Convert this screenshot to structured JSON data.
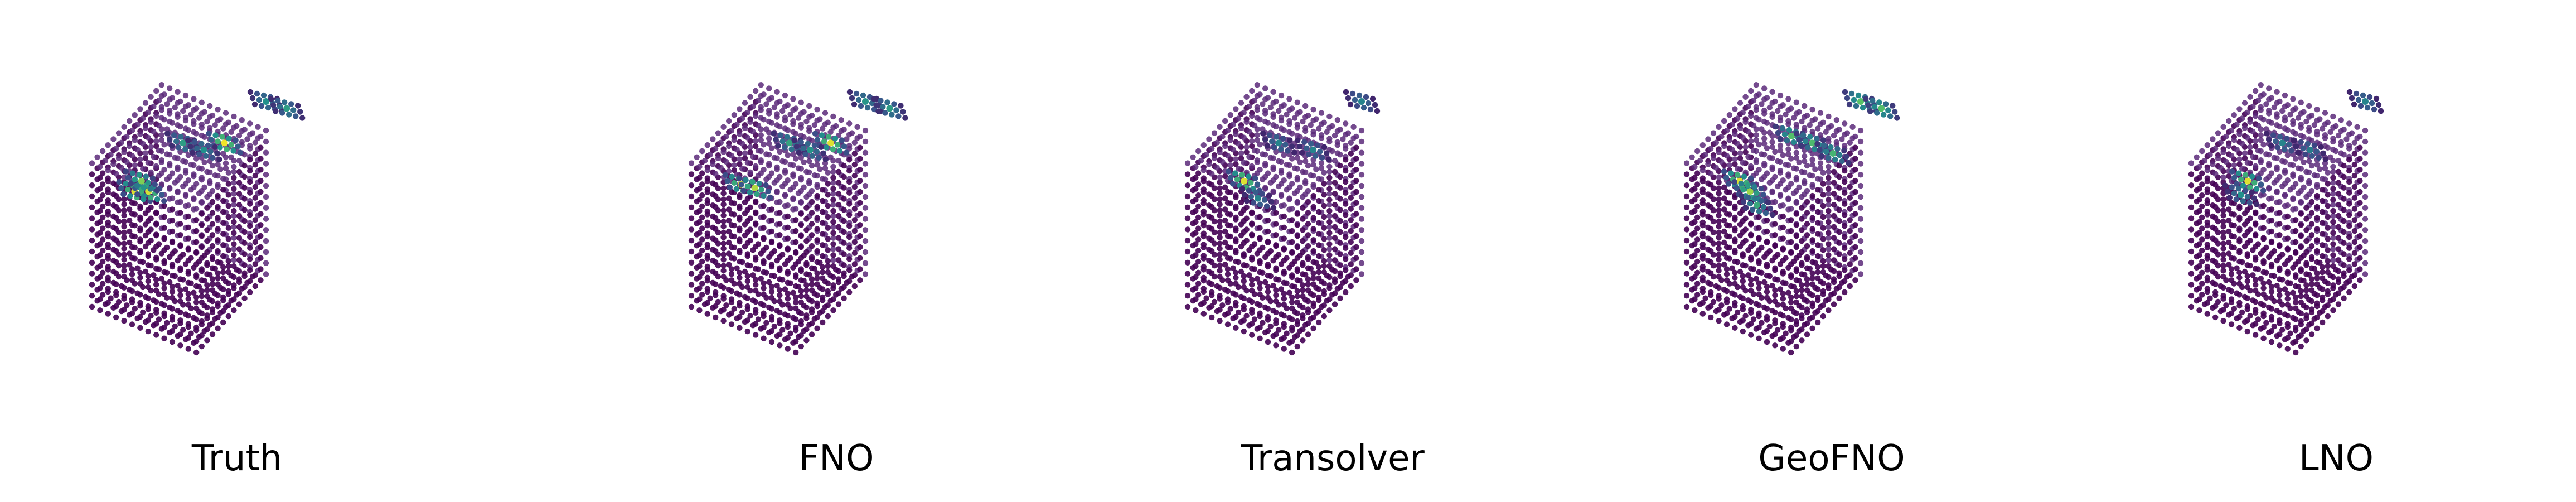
{
  "panels": [
    {
      "label": "Truth",
      "hotspots": [
        {
          "u": 0.22,
          "v": 0.36,
          "value": 0.95
        },
        {
          "u": 0.26,
          "v": 0.36,
          "value": 0.93
        },
        {
          "u": 0.24,
          "v": 0.33,
          "value": 0.8
        },
        {
          "u": 0.48,
          "v": 0.22,
          "value": 0.98
        },
        {
          "u": 0.36,
          "v": 0.22,
          "value": 0.55
        },
        {
          "u": 0.42,
          "v": 0.24,
          "value": 0.5
        },
        {
          "u": 0.6,
          "v": 0.1,
          "value": 0.5
        },
        {
          "u": 0.66,
          "v": 0.12,
          "value": 0.55
        }
      ]
    },
    {
      "label": "FNO",
      "hotspots": [
        {
          "u": 0.24,
          "v": 0.34,
          "value": 0.92
        },
        {
          "u": 0.28,
          "v": 0.35,
          "value": 0.88
        },
        {
          "u": 0.5,
          "v": 0.22,
          "value": 0.95
        },
        {
          "u": 0.38,
          "v": 0.22,
          "value": 0.58
        },
        {
          "u": 0.44,
          "v": 0.24,
          "value": 0.52
        },
        {
          "u": 0.6,
          "v": 0.1,
          "value": 0.52
        },
        {
          "u": 0.67,
          "v": 0.12,
          "value": 0.55
        }
      ]
    },
    {
      "label": "Transolver",
      "hotspots": [
        {
          "u": 0.26,
          "v": 0.33,
          "value": 0.95
        },
        {
          "u": 0.3,
          "v": 0.38,
          "value": 0.45
        },
        {
          "u": 0.36,
          "v": 0.22,
          "value": 0.45
        },
        {
          "u": 0.46,
          "v": 0.24,
          "value": 0.45
        },
        {
          "u": 0.6,
          "v": 0.1,
          "value": 0.45
        }
      ]
    },
    {
      "label": "GeoFNO",
      "hotspots": [
        {
          "u": 0.25,
          "v": 0.33,
          "value": 0.95
        },
        {
          "u": 0.28,
          "v": 0.36,
          "value": 0.85
        },
        {
          "u": 0.3,
          "v": 0.4,
          "value": 0.6
        },
        {
          "u": 0.4,
          "v": 0.2,
          "value": 0.7
        },
        {
          "u": 0.46,
          "v": 0.22,
          "value": 0.68
        },
        {
          "u": 0.52,
          "v": 0.25,
          "value": 0.65
        },
        {
          "u": 0.6,
          "v": 0.1,
          "value": 0.72
        },
        {
          "u": 0.66,
          "v": 0.12,
          "value": 0.7
        }
      ]
    },
    {
      "label": "LNO",
      "hotspots": [
        {
          "u": 0.26,
          "v": 0.33,
          "value": 0.95
        },
        {
          "u": 0.24,
          "v": 0.37,
          "value": 0.5
        },
        {
          "u": 0.36,
          "v": 0.22,
          "value": 0.45
        },
        {
          "u": 0.44,
          "v": 0.24,
          "value": 0.42
        },
        {
          "u": 0.6,
          "v": 0.1,
          "value": 0.45
        }
      ]
    }
  ],
  "colors": {
    "cube_dark": "#440154",
    "cube_edge": "#5c2a7a",
    "viridis": [
      "#440154",
      "#3b528b",
      "#21918c",
      "#5ec962",
      "#fde725"
    ]
  }
}
